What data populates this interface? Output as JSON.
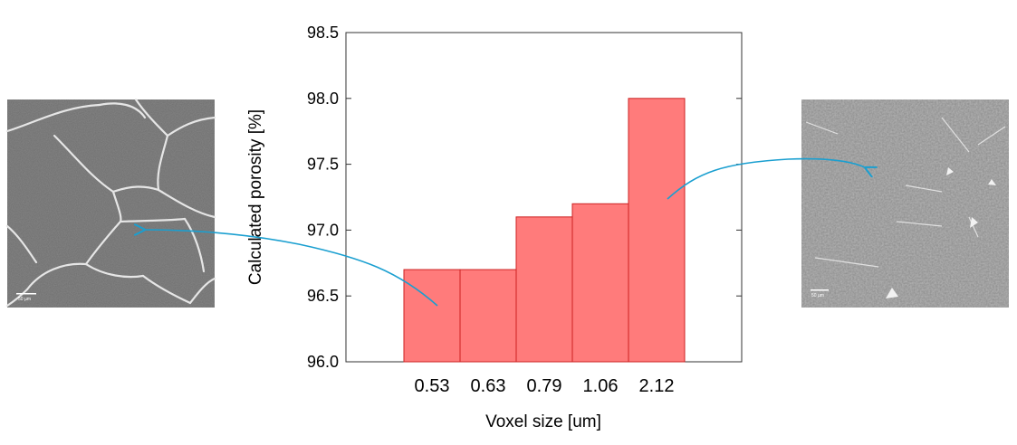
{
  "chart_data": {
    "type": "bar",
    "categories": [
      "0.53",
      "0.63",
      "0.79",
      "1.06",
      "2.12"
    ],
    "values": [
      96.7,
      96.7,
      97.1,
      97.2,
      98.0
    ],
    "xlabel": "Voxel size [um]",
    "ylabel": "Calculated porosity [%]",
    "ylim": [
      96.0,
      98.5
    ],
    "yticks": [
      "96.0",
      "96.5",
      "97.0",
      "97.5",
      "98.0",
      "98.5"
    ],
    "grid": false,
    "bar_color": "#ff7b7b",
    "bar_edge_color": "#cc2222"
  },
  "micrographs": {
    "left": {
      "scale_label": "50 µm",
      "arrow_target_category": "0.53"
    },
    "right": {
      "scale_label": "50 µm",
      "arrow_target_category": "2.12"
    },
    "arrow_color": "#1a9fd0"
  }
}
